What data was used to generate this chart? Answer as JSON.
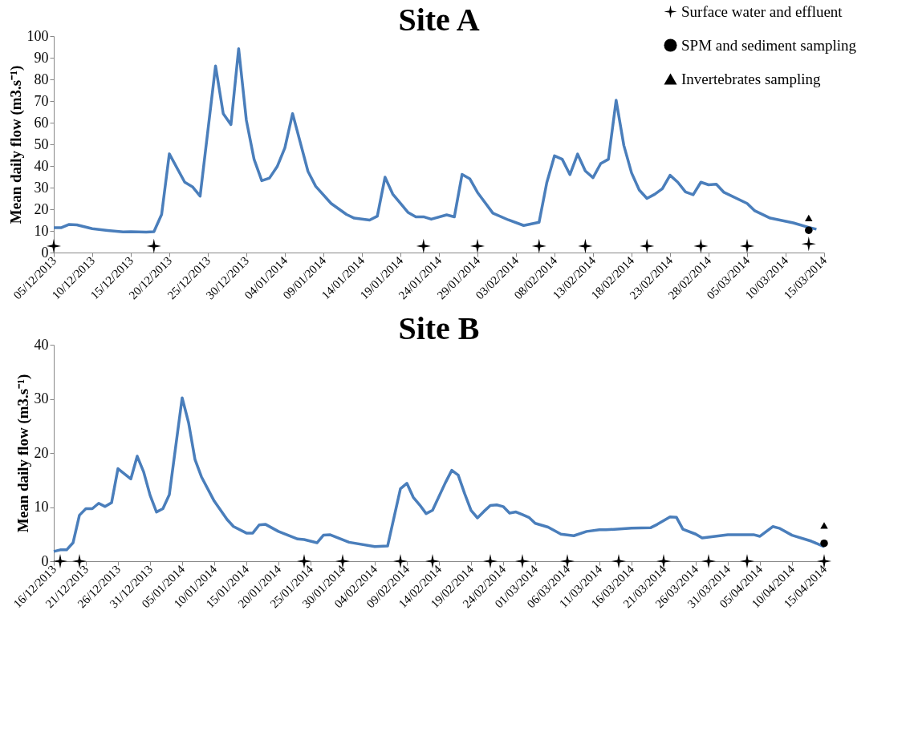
{
  "chart_data": [
    {
      "type": "line",
      "title": "Site A",
      "ylabel": "Mean daily flow (m3.s⁻¹)",
      "xlim": [
        "2013-12-05",
        "2014-03-15"
      ],
      "ylim": [
        0,
        100
      ],
      "yticks": [
        0,
        10,
        20,
        30,
        40,
        50,
        60,
        70,
        80,
        90,
        100
      ],
      "grid": false,
      "legend": "top right",
      "xticks": [
        {
          "value": "2013-12-05",
          "label": "05/12/2013"
        },
        {
          "value": "2013-12-10",
          "label": "10/12/2013"
        },
        {
          "value": "2013-12-15",
          "label": "15/12/2013"
        },
        {
          "value": "2013-12-20",
          "label": "20/12/2013"
        },
        {
          "value": "2013-12-25",
          "label": "25/12/2013"
        },
        {
          "value": "2013-12-30",
          "label": "30/12/2013"
        },
        {
          "value": "2014-01-04",
          "label": "04/01/2014"
        },
        {
          "value": "2014-01-09",
          "label": "09/01/2014"
        },
        {
          "value": "2014-01-14",
          "label": "14/01/2014"
        },
        {
          "value": "2014-01-19",
          "label": "19/01/2014"
        },
        {
          "value": "2014-01-24",
          "label": "24/01/2014"
        },
        {
          "value": "2014-01-29",
          "label": "29/01/2014"
        },
        {
          "value": "2014-02-03",
          "label": "03/02/2014"
        },
        {
          "value": "2014-02-08",
          "label": "08/02/2014"
        },
        {
          "value": "2014-02-13",
          "label": "13/02/2014"
        },
        {
          "value": "2014-02-18",
          "label": "18/02/2014"
        },
        {
          "value": "2014-02-23",
          "label": "23/02/2014"
        },
        {
          "value": "2014-02-28",
          "label": "28/02/2014"
        },
        {
          "value": "2014-03-05",
          "label": "05/03/2014"
        },
        {
          "value": "2014-03-10",
          "label": "10/03/2014"
        },
        {
          "value": "2014-03-15",
          "label": "15/03/2014"
        }
      ],
      "series": [
        {
          "type": "line",
          "color": "#4a7ebb",
          "line_style": "solid",
          "x": [
            "2013-12-05",
            "2013-12-06",
            "2013-12-07",
            "2013-12-08",
            "2013-12-10",
            "2013-12-12",
            "2013-12-14",
            "2013-12-15",
            "2013-12-17",
            "2013-12-18",
            "2013-12-19",
            "2013-12-20",
            "2013-12-22",
            "2013-12-23",
            "2013-12-24",
            "2013-12-26",
            "2013-12-27",
            "2013-12-28",
            "2013-12-29",
            "2013-12-30",
            "2013-12-31",
            "2014-01-01",
            "2014-01-02",
            "2014-01-03",
            "2014-01-04",
            "2014-01-05",
            "2014-01-07",
            "2014-01-08",
            "2014-01-10",
            "2014-01-12",
            "2014-01-13",
            "2014-01-15",
            "2014-01-16",
            "2014-01-17",
            "2014-01-18",
            "2014-01-20",
            "2014-01-21",
            "2014-01-22",
            "2014-01-23",
            "2014-01-25",
            "2014-01-26",
            "2014-01-27",
            "2014-01-28",
            "2014-01-29",
            "2014-01-31",
            "2014-02-02",
            "2014-02-04",
            "2014-02-06",
            "2014-02-07",
            "2014-02-08",
            "2014-02-09",
            "2014-02-10",
            "2014-02-11",
            "2014-02-12",
            "2014-02-13",
            "2014-02-14",
            "2014-02-15",
            "2014-02-16",
            "2014-02-17",
            "2014-02-18",
            "2014-02-19",
            "2014-02-20",
            "2014-02-21",
            "2014-02-22",
            "2014-02-23",
            "2014-02-24",
            "2014-02-25",
            "2014-02-26",
            "2014-02-27",
            "2014-02-28",
            "2014-03-01",
            "2014-03-02",
            "2014-03-05",
            "2014-03-06",
            "2014-03-08",
            "2014-03-11",
            "2014-03-13",
            "2014-03-14"
          ],
          "values": [
            11.5,
            11.5,
            13,
            12.8,
            11,
            10.2,
            9.5,
            9.6,
            9.4,
            9.6,
            17.6,
            45.6,
            32.5,
            30.4,
            26.1,
            86.2,
            64.2,
            59.1,
            94.2,
            61.1,
            43.1,
            33.2,
            34.4,
            39.7,
            48.4,
            64.2,
            37.5,
            30.6,
            22.7,
            17.6,
            15.9,
            15,
            16.8,
            34.8,
            27,
            18.5,
            16.5,
            16.5,
            15.4,
            17.4,
            16.5,
            36.1,
            34.1,
            27.8,
            18.2,
            15.1,
            12.5,
            14,
            32.3,
            44.7,
            43.1,
            36,
            45.5,
            37.7,
            34.6,
            41.1,
            43.1,
            70.4,
            49.5,
            36.8,
            28.9,
            25,
            26.9,
            29.5,
            35.7,
            32.5,
            28,
            26.7,
            32.5,
            31.3,
            31.6,
            27.8,
            22.7,
            19.3,
            15.9,
            13.7,
            11.6,
            10.8
          ]
        },
        {
          "type": "scatter",
          "name": "Surface water and effluent",
          "color": "#000000",
          "marker": "star",
          "x": [
            "2013-12-05",
            "2013-12-18",
            "2014-01-22",
            "2014-01-29",
            "2014-02-06",
            "2014-02-12",
            "2014-02-20",
            "2014-02-27",
            "2014-03-05",
            "2014-03-13"
          ],
          "values": [
            3,
            3,
            3,
            3,
            3,
            3,
            3,
            3,
            3,
            4
          ]
        },
        {
          "type": "scatter",
          "name": "SPM and sediment sampling",
          "color": "#000000",
          "marker": "circle",
          "x": [
            "2014-03-13"
          ],
          "values": [
            10.3
          ]
        },
        {
          "type": "scatter",
          "name": "Invertebrates sampling",
          "color": "#000000",
          "marker": "triangle",
          "x": [
            "2014-03-13"
          ],
          "values": [
            16
          ]
        }
      ]
    },
    {
      "type": "line",
      "title": "Site B",
      "ylabel": "Mean daily flow (m3.s⁻¹)",
      "xlim": [
        "2013-12-16",
        "2014-04-15"
      ],
      "ylim": [
        0,
        40
      ],
      "yticks": [
        0,
        10,
        20,
        30,
        40
      ],
      "grid": false,
      "xticks": [
        {
          "value": "2013-12-16",
          "label": "16/12/2013"
        },
        {
          "value": "2013-12-21",
          "label": "21/12/2013"
        },
        {
          "value": "2013-12-26",
          "label": "26/12/2013"
        },
        {
          "value": "2013-12-31",
          "label": "31/12/2013"
        },
        {
          "value": "2014-01-05",
          "label": "05/01/2014"
        },
        {
          "value": "2014-01-10",
          "label": "10/01/2014"
        },
        {
          "value": "2014-01-15",
          "label": "15/01/2014"
        },
        {
          "value": "2014-01-20",
          "label": "20/01/2014"
        },
        {
          "value": "2014-01-25",
          "label": "25/01/2014"
        },
        {
          "value": "2014-01-30",
          "label": "30/01/2014"
        },
        {
          "value": "2014-02-04",
          "label": "04/02/2014"
        },
        {
          "value": "2014-02-09",
          "label": "09/02/2014"
        },
        {
          "value": "2014-02-14",
          "label": "14/02/2014"
        },
        {
          "value": "2014-02-19",
          "label": "19/02/2014"
        },
        {
          "value": "2014-02-24",
          "label": "24/02/2014"
        },
        {
          "value": "2014-03-01",
          "label": "01/03/2014"
        },
        {
          "value": "2014-03-06",
          "label": "06/03/2014"
        },
        {
          "value": "2014-03-11",
          "label": "11/03/2014"
        },
        {
          "value": "2014-03-16",
          "label": "16/03/2014"
        },
        {
          "value": "2014-03-21",
          "label": "21/03/2014"
        },
        {
          "value": "2014-03-26",
          "label": "26/03/2014"
        },
        {
          "value": "2014-03-31",
          "label": "31/03/2014"
        },
        {
          "value": "2014-04-05",
          "label": "05/04/2014"
        },
        {
          "value": "2014-04-10",
          "label": "10/04/2014"
        },
        {
          "value": "2014-04-15",
          "label": "15/04/2014"
        }
      ],
      "series": [
        {
          "type": "line",
          "color": "#4a7ebb",
          "line_style": "solid",
          "x": [
            "2013-12-16",
            "2013-12-17",
            "2013-12-18",
            "2013-12-19",
            "2013-12-20",
            "2013-12-21",
            "2013-12-22",
            "2013-12-23",
            "2013-12-24",
            "2013-12-25",
            "2013-12-26",
            "2013-12-28",
            "2013-12-29",
            "2013-12-30",
            "2013-12-31",
            "2014-01-01",
            "2014-01-02",
            "2014-01-03",
            "2014-01-05",
            "2014-01-06",
            "2014-01-07",
            "2014-01-08",
            "2014-01-10",
            "2014-01-12",
            "2014-01-13",
            "2014-01-15",
            "2014-01-16",
            "2014-01-17",
            "2014-01-18",
            "2014-01-20",
            "2014-01-23",
            "2014-01-24",
            "2014-01-26",
            "2014-01-27",
            "2014-01-28",
            "2014-01-31",
            "2014-02-04",
            "2014-02-06",
            "2014-02-08",
            "2014-02-09",
            "2014-02-10",
            "2014-02-11",
            "2014-02-12",
            "2014-02-13",
            "2014-02-15",
            "2014-02-16",
            "2014-02-17",
            "2014-02-18",
            "2014-02-19",
            "2014-02-20",
            "2014-02-21",
            "2014-02-22",
            "2014-02-23",
            "2014-02-24",
            "2014-02-25",
            "2014-02-26",
            "2014-02-27",
            "2014-02-28",
            "2014-03-01",
            "2014-03-03",
            "2014-03-05",
            "2014-03-07",
            "2014-03-09",
            "2014-03-11",
            "2014-03-12",
            "2014-03-16",
            "2014-03-19",
            "2014-03-20",
            "2014-03-22",
            "2014-03-23",
            "2014-03-24",
            "2014-03-26",
            "2014-03-27",
            "2014-03-29",
            "2014-03-31",
            "2014-04-02",
            "2014-04-04",
            "2014-04-05",
            "2014-04-07",
            "2014-04-08",
            "2014-04-10",
            "2014-04-13",
            "2014-04-15"
          ],
          "values": [
            1.8,
            2.1,
            2.1,
            3.4,
            8.5,
            9.7,
            9.7,
            10.7,
            10.1,
            10.8,
            17.1,
            15.2,
            19.4,
            16.5,
            12.2,
            9.1,
            9.7,
            12.3,
            30.2,
            25.6,
            18.8,
            15.6,
            11.1,
            7.7,
            6.4,
            5.2,
            5.2,
            6.7,
            6.8,
            5.5,
            4.1,
            4.0,
            3.4,
            4.8,
            4.9,
            3.5,
            2.7,
            2.8,
            13.4,
            14.4,
            11.8,
            10.4,
            8.8,
            9.4,
            14.5,
            16.8,
            15.9,
            12.5,
            9.4,
            8.0,
            9.2,
            10.3,
            10.4,
            10.1,
            8.9,
            9.1,
            8.6,
            8.1,
            7.0,
            6.3,
            5.0,
            4.7,
            5.5,
            5.8,
            5.8,
            6.1,
            6.2,
            6.8,
            8.2,
            8.1,
            5.9,
            5.0,
            4.3,
            4.6,
            4.9,
            4.9,
            4.9,
            4.6,
            6.4,
            6.1,
            4.8,
            3.7,
            2.7
          ]
        },
        {
          "type": "scatter",
          "color": "#000000",
          "marker": "star",
          "x": [
            "2013-12-17",
            "2013-12-20",
            "2014-01-24",
            "2014-01-30",
            "2014-02-08",
            "2014-02-13",
            "2014-02-22",
            "2014-02-27",
            "2014-03-06",
            "2014-03-14",
            "2014-03-21",
            "2014-03-28",
            "2014-04-03",
            "2014-04-15"
          ],
          "values": [
            0,
            0,
            0,
            0,
            0,
            0,
            0,
            0,
            0,
            0,
            0,
            0,
            0,
            0
          ]
        },
        {
          "type": "scatter",
          "color": "#000000",
          "marker": "circle",
          "x": [
            "2014-04-15"
          ],
          "values": [
            3.3
          ]
        },
        {
          "type": "scatter",
          "color": "#000000",
          "marker": "triangle",
          "x": [
            "2014-04-15"
          ],
          "values": [
            6.6
          ]
        }
      ]
    }
  ]
}
